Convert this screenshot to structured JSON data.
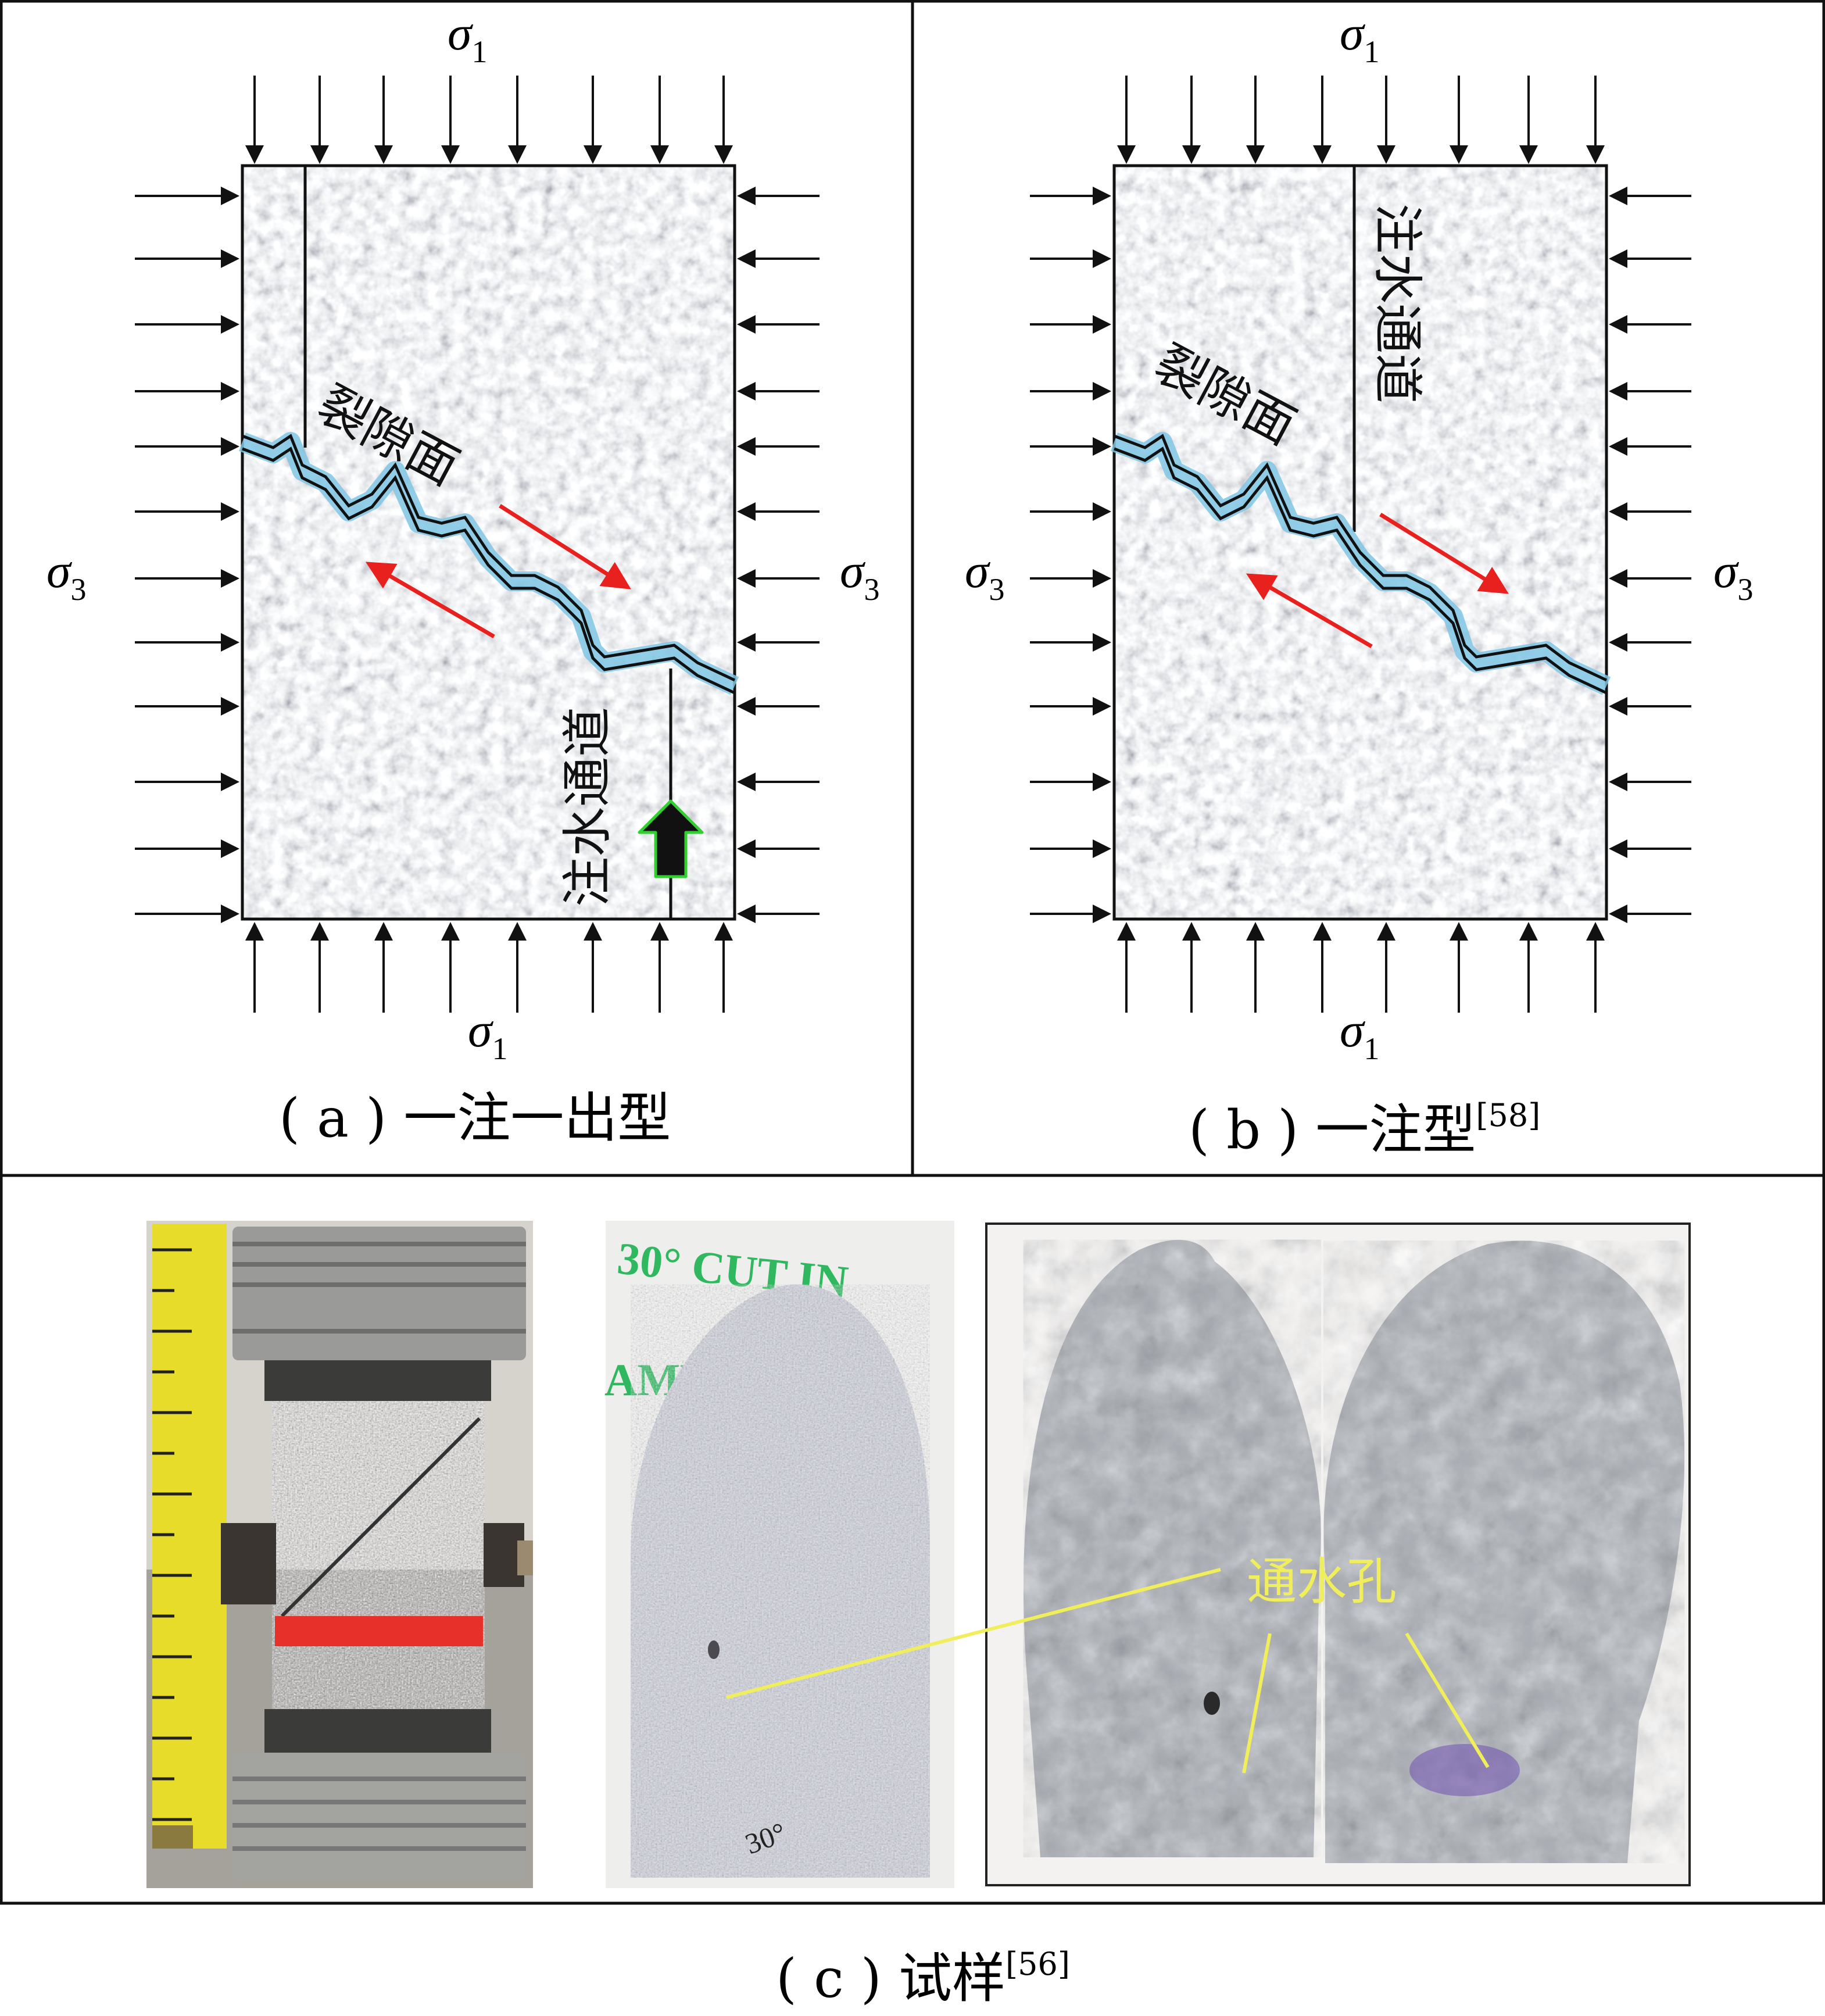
{
  "panel_a": {
    "sigma_top": "σ",
    "sigma_top_sub": "1",
    "sigma_bottom": "σ",
    "sigma_bottom_sub": "1",
    "sigma_left": "σ",
    "sigma_left_sub": "3",
    "sigma_right": "σ",
    "sigma_right_sub": "3",
    "fracture_label": "裂隙面",
    "channel_label": "注水通道",
    "caption": "( a ) 一注一出型"
  },
  "panel_b": {
    "sigma_top": "σ",
    "sigma_top_sub": "1",
    "sigma_bottom": "σ",
    "sigma_bottom_sub": "1",
    "sigma_left": "σ",
    "sigma_left_sub": "3",
    "sigma_right": "σ",
    "sigma_right_sub": "3",
    "fracture_label": "裂隙面",
    "channel_label": "注水通道",
    "caption": "( b ) 一注型",
    "caption_ref": "[58]"
  },
  "panel_c": {
    "hole_label": "通水孔",
    "photo1_text": "30° CUT IN",
    "photo1_text2": "AME)",
    "photo1_mark": "30°",
    "caption": "( c ) 试样",
    "caption_ref": "[56]"
  },
  "colors": {
    "fracture_glow": "#7fc6e4",
    "shear_arrow": "#e8201e",
    "inlet_arrow_outline": "#2fd02f",
    "hole_annotation": "#f0ee5a",
    "red_band": "#e8302a"
  }
}
